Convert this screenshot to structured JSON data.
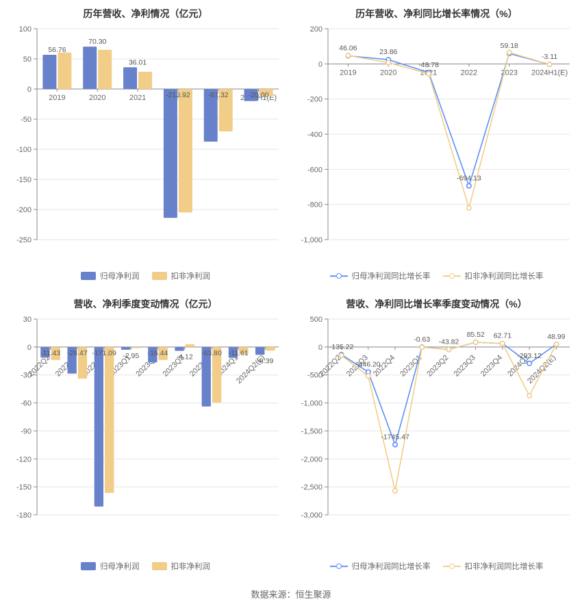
{
  "footer_text": "数据来源：恒生聚源",
  "palette": {
    "bar_a": "#6881cb",
    "bar_b": "#f2cd87",
    "line_a": "#5b8ff9",
    "line_b": "#f2cd87",
    "axis": "#888888",
    "split": "#e5e5e5",
    "text": "#666666",
    "title": "#333333",
    "background": "#ffffff"
  },
  "panels": [
    {
      "id": "p1",
      "title": "历年营收、净利情况（亿元）",
      "type": "bar",
      "categories": [
        "2019",
        "2020",
        "2021",
        "2022",
        "2023",
        "2024H1(E)"
      ],
      "x_label_rotate": 0,
      "ylim": [
        -250,
        100
      ],
      "ytick_step": 50,
      "bar_width": 0.34,
      "series": [
        {
          "name": "归母净利润",
          "color": "#6881cb",
          "values": [
            56.76,
            70.3,
            36.01,
            -213.92,
            -87.32,
            -20.0
          ]
        },
        {
          "name": "扣非净利润",
          "color": "#f2cd87",
          "values": [
            60.5,
            65.0,
            28.5,
            -205.0,
            -70.5,
            -11.5
          ]
        }
      ],
      "value_labels_series_index": 0,
      "legend": [
        {
          "kind": "bar",
          "text": "归母净利润",
          "color": "#6881cb"
        },
        {
          "kind": "bar",
          "text": "扣非净利润",
          "color": "#f2cd87"
        }
      ]
    },
    {
      "id": "p2",
      "title": "历年营收、净利同比增长率情况（%）",
      "type": "line",
      "categories": [
        "2019",
        "2020",
        "2021",
        "2022",
        "2023",
        "2024H1(E)"
      ],
      "x_label_rotate": 0,
      "ylim": [
        -1000,
        200
      ],
      "ytick_step": 200,
      "series": [
        {
          "name": "归母净利润同比增长率",
          "color": "#5b8ff9",
          "values": [
            46.06,
            23.86,
            -48.78,
            -694.13,
            59.18,
            -3.11
          ]
        },
        {
          "name": "扣非净利润同比增长率",
          "color": "#f2cd87",
          "values": [
            48.0,
            7.0,
            -56.0,
            -820.0,
            65.0,
            -3.11
          ]
        }
      ],
      "value_labels_series_index": 0,
      "legend": [
        {
          "kind": "line",
          "text": "归母净利润同比增长率",
          "color": "#5b8ff9"
        },
        {
          "kind": "line",
          "text": "扣非净利润同比增长率",
          "color": "#f2cd87"
        }
      ]
    },
    {
      "id": "p3",
      "title": "营收、净利季度变动情况（亿元）",
      "type": "bar",
      "categories": [
        "2022Q2",
        "2022Q3",
        "2022Q4",
        "2023Q1",
        "2023Q2",
        "2023Q3",
        "2023Q4",
        "2024Q1",
        "2024Q2(E)"
      ],
      "x_label_rotate": -45,
      "ylim": [
        -180,
        30
      ],
      "ytick_step": 30,
      "bar_width": 0.34,
      "series": [
        {
          "name": "归母净利润",
          "color": "#6881cb",
          "values": [
            -11.43,
            -28.47,
            -171.09,
            -2.95,
            -16.44,
            -4.12,
            -63.8,
            -11.61,
            -8.39
          ]
        },
        {
          "name": "扣非净利润",
          "color": "#f2cd87",
          "values": [
            -14.0,
            -34.0,
            -156.5,
            -1.2,
            -14.0,
            3.0,
            -59.5,
            -7.5,
            -4.0
          ]
        }
      ],
      "value_labels_series_index": 0,
      "legend": [
        {
          "kind": "bar",
          "text": "归母净利润",
          "color": "#6881cb"
        },
        {
          "kind": "bar",
          "text": "扣非净利润",
          "color": "#f2cd87"
        }
      ]
    },
    {
      "id": "p4",
      "title": "营收、净利同比增长率季度变动情况（%）",
      "type": "line",
      "categories": [
        "2022Q2",
        "2022Q3",
        "2022Q4",
        "2023Q1",
        "2023Q2",
        "2023Q3",
        "2023Q4",
        "2024Q1",
        "2024Q2(E)"
      ],
      "x_label_rotate": -45,
      "ylim": [
        -3000,
        500
      ],
      "ytick_step": 500,
      "series": [
        {
          "name": "归母净利润同比增长率",
          "color": "#5b8ff9",
          "values": [
            -135.22,
            -446.2,
            -1745.47,
            -0.63,
            -43.82,
            85.52,
            62.71,
            -293.12,
            48.99
          ]
        },
        {
          "name": "扣非净利润同比增长率",
          "color": "#f2cd87",
          "values": [
            -150.0,
            -520.0,
            -2570.0,
            -5.0,
            -43.82,
            85.52,
            62.71,
            -870.0,
            48.99
          ]
        }
      ],
      "value_labels_series_index": 0,
      "legend": [
        {
          "kind": "line",
          "text": "归母净利润同比增长率",
          "color": "#5b8ff9"
        },
        {
          "kind": "line",
          "text": "扣非净利润同比增长率",
          "color": "#f2cd87"
        }
      ]
    }
  ]
}
